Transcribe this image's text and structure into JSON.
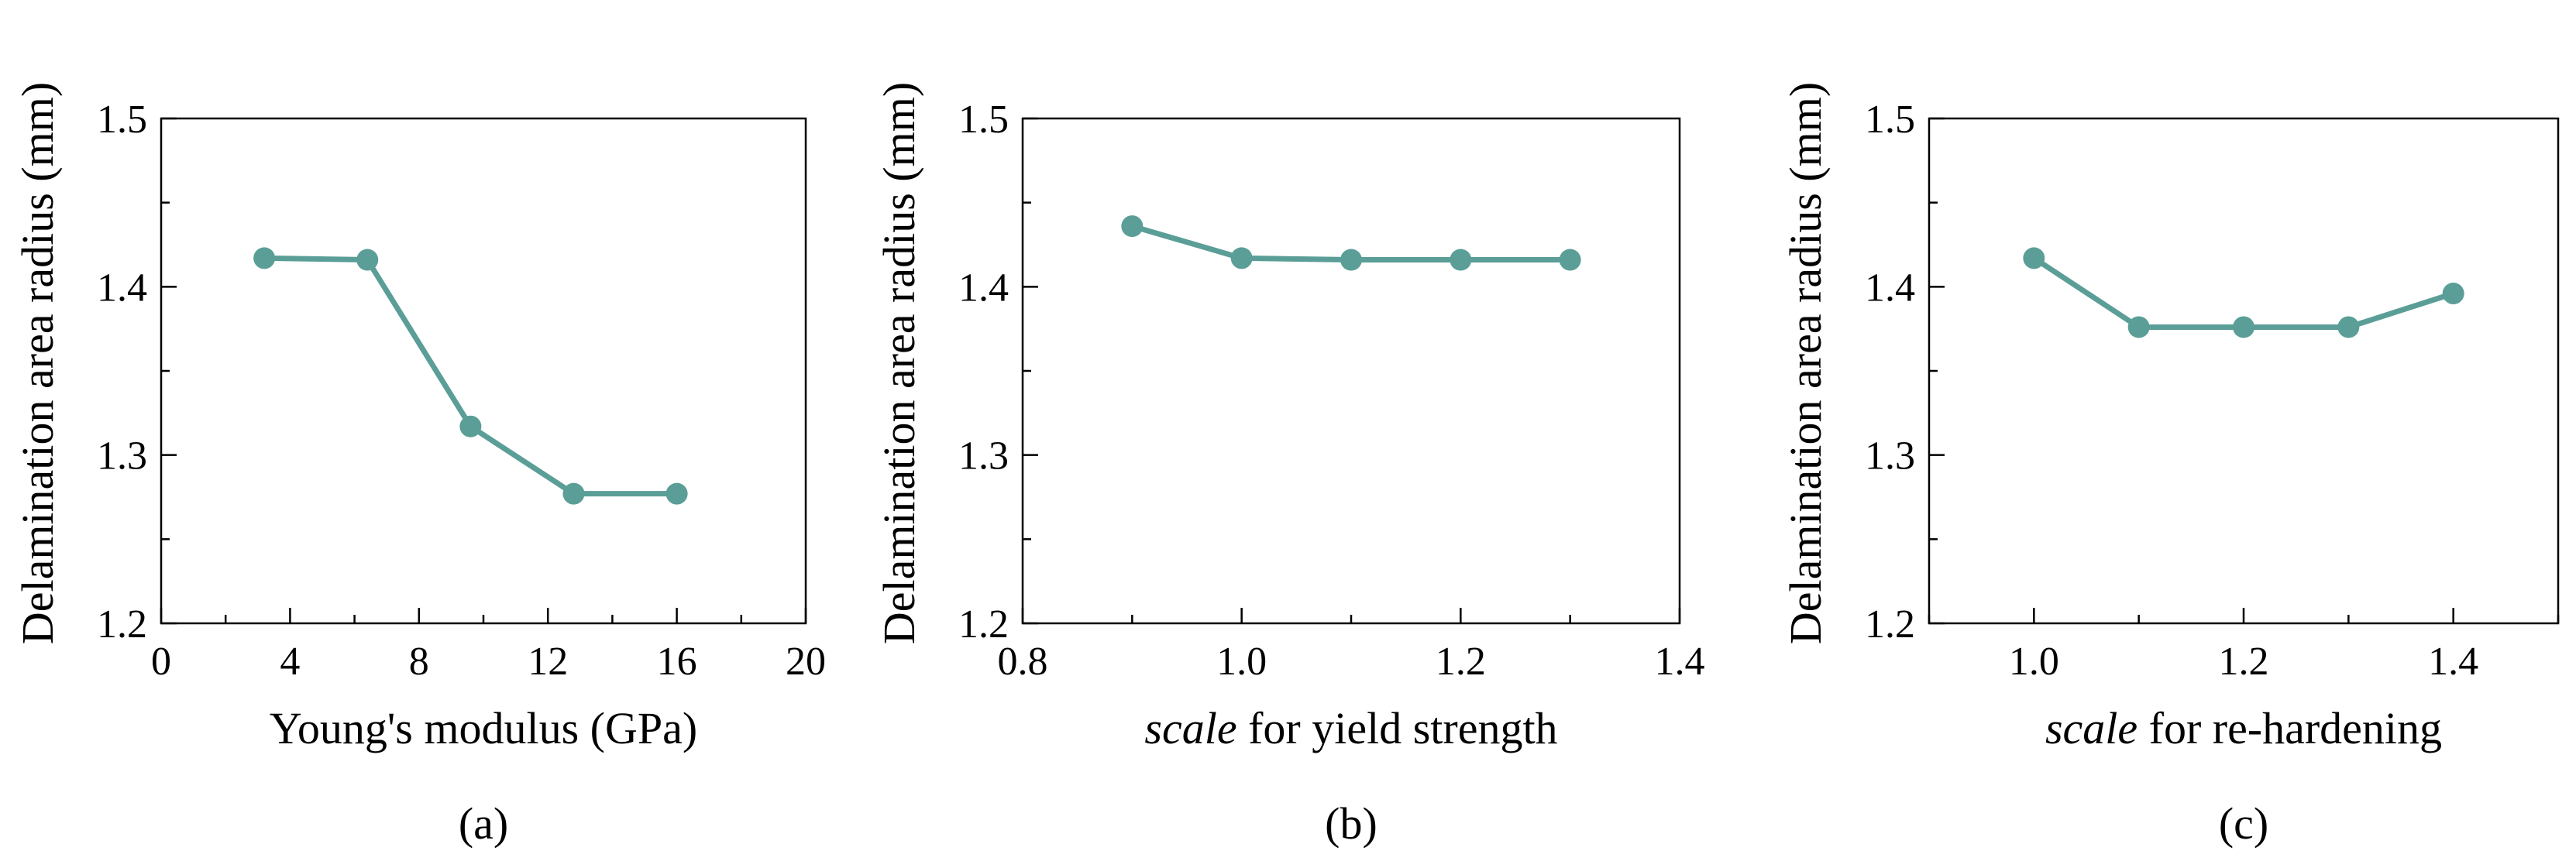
{
  "figure": {
    "series_color": "#5a9e97"
  },
  "chart_data": [
    {
      "type": "line",
      "panel_label": "(a)",
      "xlabel": "Young's modulus (GPa)",
      "xlabel_italic_prefix": "",
      "ylabel": "Delamination area radius (mm)",
      "xlim": [
        0,
        20
      ],
      "ylim": [
        1.2,
        1.5
      ],
      "xticks": [
        0,
        4,
        8,
        12,
        16,
        20
      ],
      "xtick_labels": [
        "0",
        "4",
        "8",
        "12",
        "16",
        "20"
      ],
      "yticks": [
        1.2,
        1.3,
        1.4,
        1.5
      ],
      "ytick_labels": [
        "1.2",
        "1.3",
        "1.4",
        "1.5"
      ],
      "x": [
        3.2,
        6.4,
        9.6,
        12.8,
        16.0
      ],
      "y": [
        1.417,
        1.416,
        1.317,
        1.277,
        1.277
      ]
    },
    {
      "type": "line",
      "panel_label": "(b)",
      "xlabel": " for yield strength",
      "xlabel_italic_prefix": "scale",
      "ylabel": "Delamination area radius (mm)",
      "xlim": [
        0.8,
        1.4
      ],
      "ylim": [
        1.2,
        1.5
      ],
      "xticks": [
        0.8,
        1.0,
        1.2,
        1.4
      ],
      "xtick_labels": [
        "0.8",
        "1.0",
        "1.2",
        "1.4"
      ],
      "yticks": [
        1.2,
        1.3,
        1.4,
        1.5
      ],
      "ytick_labels": [
        "1.2",
        "1.3",
        "1.4",
        "1.5"
      ],
      "x": [
        0.9,
        1.0,
        1.1,
        1.2,
        1.3
      ],
      "y": [
        1.436,
        1.417,
        1.416,
        1.416,
        1.416
      ]
    },
    {
      "type": "line",
      "panel_label": "(c)",
      "xlabel": " for re-hardening",
      "xlabel_italic_prefix": "scale",
      "ylabel": "Delamination area radius (mm)",
      "xlim": [
        0.9,
        1.5
      ],
      "ylim": [
        1.2,
        1.5
      ],
      "xticks": [
        1.0,
        1.2,
        1.4
      ],
      "xtick_labels": [
        "1.0",
        "1.2",
        "1.4"
      ],
      "yticks": [
        1.2,
        1.3,
        1.4,
        1.5
      ],
      "ytick_labels": [
        "1.2",
        "1.3",
        "1.4",
        "1.5"
      ],
      "x": [
        1.0,
        1.1,
        1.2,
        1.3,
        1.4
      ],
      "y": [
        1.417,
        1.376,
        1.376,
        1.376,
        1.396
      ]
    }
  ]
}
